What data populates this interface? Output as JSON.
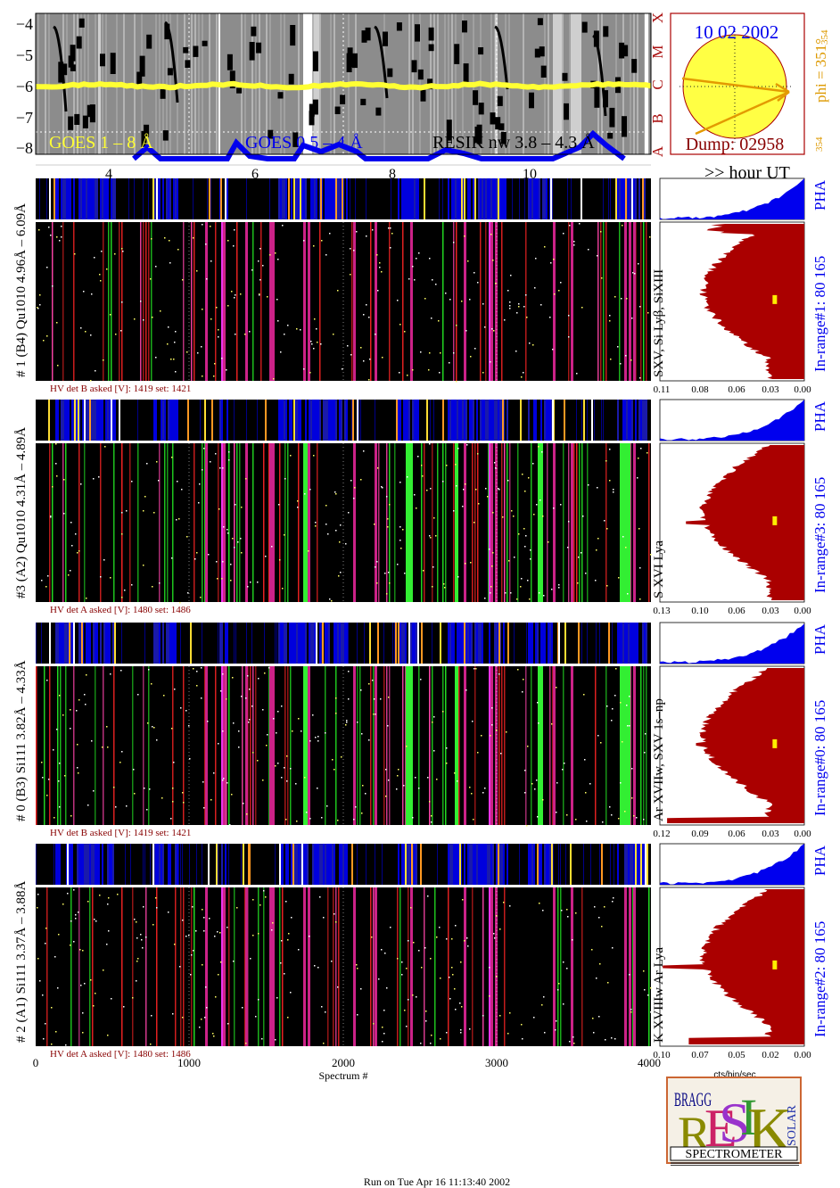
{
  "colors": {
    "goes_long": "#ffff33",
    "goes_short": "#0000ee",
    "resik": "#000000",
    "hist_red": "#aa0000",
    "hist_blue": "#0000ee",
    "dark_red": "#880000",
    "orange": "#dd9900",
    "sun_fill": "#ffff44"
  },
  "goes_panel": {
    "y_ticks": [
      "−4",
      "−5",
      "−6",
      "−7",
      "−8"
    ],
    "flare_classes": [
      "X",
      "M",
      "C",
      "B",
      "A"
    ],
    "legend_goes_long": "GOES 1 – 8 Å",
    "legend_goes_short": "GOES 0.5 – 4 Å",
    "legend_resik": "RESIK nw 3.8 – 4.3 Å",
    "hour_ticks": [
      "4",
      "6",
      "8",
      "10"
    ],
    "hour_label": ">> hour UT"
  },
  "sun_panel": {
    "date": "10 02 2002",
    "dump": "Dump: 02958",
    "phi": "phi = 351°",
    "phi_sub": "354",
    "phi_bottom": "354"
  },
  "detectors": [
    {
      "label": "# 1 (B4) Qu1010  4.96Å – 6.09Å",
      "lines": "SXV, Si Lyβ, SiXIII",
      "range": "In-range#1:   80 165",
      "pha": "PHA",
      "hv": "HV det B asked [V]:  1419 set:  1421",
      "hist_ticks": [
        "0.11",
        "0.08",
        "0.06",
        "0.03",
        "0.00"
      ]
    },
    {
      "label": "#3 (A2) Qu1010   4.31Å – 4.89Å",
      "lines": "S XVI Lya",
      "range": "In-range#3:   80 165",
      "pha": "PHA",
      "hv": "HV det A asked [V]:  1480 set:  1486",
      "hist_ticks": [
        "0.13",
        "0.10",
        "0.06",
        "0.03",
        "0.00"
      ]
    },
    {
      "label": "# 0 (B3) Si111  3.82Å – 4.33Å",
      "lines": "Ar XVIIw,  SXV 1s–np",
      "range": "In-range#0:   80 165",
      "pha": "PHA",
      "hv": "HV det B asked [V]:  1419 set:  1421",
      "hist_ticks": [
        "0.12",
        "0.09",
        "0.06",
        "0.03",
        "0.00"
      ]
    },
    {
      "label": "# 2 (A1) Si111  3.37Å – 3.88Å",
      "lines": "K XVIIIw  Ar Lya",
      "range": "In-range#2:   80 165",
      "pha": "PHA",
      "hv": "HV det A asked [V]:  1480 set:  1486",
      "hist_ticks": [
        "0.10",
        "0.07",
        "0.05",
        "0.02",
        "0.00"
      ]
    }
  ],
  "bottom_axis": {
    "ticks": [
      "0",
      "1000",
      "2000",
      "3000",
      "4000"
    ],
    "label": "Spectrum #",
    "hist_unit": "cts/bin/sec"
  },
  "logo": {
    "word": "SPECTROMETER",
    "letters_bragg": "BRAGG",
    "letters_solar": "SOLAR"
  },
  "footer": "Run on Tue Apr 16 11:13:40 2002"
}
